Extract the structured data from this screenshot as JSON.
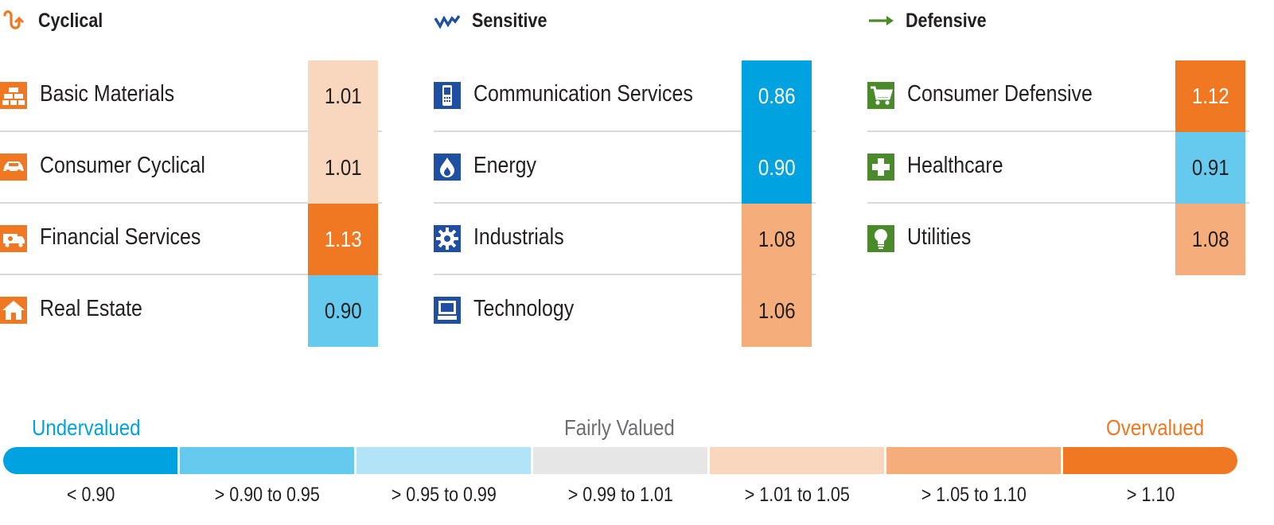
{
  "colors": {
    "undervalued_deep": "#00a3e0",
    "undervalued_mid": "#66c9ee",
    "undervalued_light": "#b3e3f6",
    "fair": "#e6e6e6",
    "overvalued_light": "#f9d7be",
    "overvalued_mid": "#f5ad7c",
    "overvalued_deep": "#f07822",
    "cyclical_accent": "#f07822",
    "sensitive_accent": "#1e4fa0",
    "defensive_accent": "#4a8a2a"
  },
  "groups": [
    {
      "title": "Cyclical",
      "icon": "cyclical-curve-icon",
      "sectors": [
        {
          "name": "Basic Materials",
          "icon": "gold-bars-icon",
          "value": "1.01",
          "tier": "overvalued_light"
        },
        {
          "name": "Consumer Cyclical",
          "icon": "car-icon",
          "value": "1.01",
          "tier": "overvalued_light"
        },
        {
          "name": "Financial Services",
          "icon": "money-truck-icon",
          "value": "1.13",
          "tier": "overvalued_deep"
        },
        {
          "name": "Real Estate",
          "icon": "house-icon",
          "value": "0.90",
          "tier": "undervalued_mid"
        }
      ]
    },
    {
      "title": "Sensitive",
      "icon": "sensitive-zigzag-icon",
      "sectors": [
        {
          "name": "Communication Services",
          "icon": "phone-icon",
          "value": "0.86",
          "tier": "undervalued_deep"
        },
        {
          "name": "Energy",
          "icon": "flame-drop-icon",
          "value": "0.90",
          "tier": "undervalued_deep"
        },
        {
          "name": "Industrials",
          "icon": "gear-icon",
          "value": "1.08",
          "tier": "overvalued_mid"
        },
        {
          "name": "Technology",
          "icon": "computer-icon",
          "value": "1.06",
          "tier": "overvalued_mid"
        }
      ]
    },
    {
      "title": "Defensive",
      "icon": "defensive-arrow-icon",
      "sectors": [
        {
          "name": "Consumer Defensive",
          "icon": "shopping-cart-icon",
          "value": "1.12",
          "tier": "overvalued_deep"
        },
        {
          "name": "Healthcare",
          "icon": "medical-cross-icon",
          "value": "0.91",
          "tier": "undervalued_mid"
        },
        {
          "name": "Utilities",
          "icon": "light-bulb-icon",
          "value": "1.08",
          "tier": "overvalued_mid"
        }
      ]
    }
  ],
  "legend": {
    "undervalued_label": "Undervalued",
    "fair_label": "Fairly Valued",
    "overvalued_label": "Overvalued",
    "segments": [
      {
        "label": "< 0.90",
        "tier": "undervalued_deep"
      },
      {
        "label": "> 0.90 to 0.95",
        "tier": "undervalued_mid"
      },
      {
        "label": "> 0.95 to 0.99",
        "tier": "undervalued_light"
      },
      {
        "label": "> 0.99 to 1.01",
        "tier": "fair"
      },
      {
        "label": "> 1.01 to 1.05",
        "tier": "overvalued_light"
      },
      {
        "label": "> 1.05 to 1.10",
        "tier": "overvalued_mid"
      },
      {
        "label": "> 1.10",
        "tier": "overvalued_deep"
      }
    ]
  },
  "chart_data": {
    "type": "table",
    "series": [
      {
        "name": "Cyclical",
        "categories": [
          "Basic Materials",
          "Consumer Cyclical",
          "Financial Services",
          "Real Estate"
        ],
        "values": [
          1.01,
          1.01,
          1.13,
          0.9
        ]
      },
      {
        "name": "Sensitive",
        "categories": [
          "Communication Services",
          "Energy",
          "Industrials",
          "Technology"
        ],
        "values": [
          0.86,
          0.9,
          1.08,
          1.06
        ]
      },
      {
        "name": "Defensive",
        "categories": [
          "Consumer Defensive",
          "Healthcare",
          "Utilities"
        ],
        "values": [
          1.12,
          0.91,
          1.08
        ]
      }
    ],
    "legend_bins": [
      "< 0.90",
      "> 0.90 to 0.95",
      "> 0.95 to 0.99",
      "> 0.99 to 1.01",
      "> 1.01 to 1.05",
      "> 1.05 to 1.10",
      "> 1.10"
    ]
  }
}
